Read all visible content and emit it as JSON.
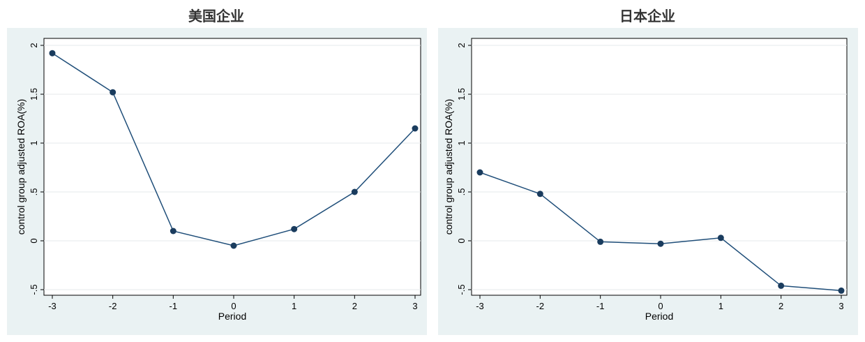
{
  "chart_data": [
    {
      "type": "line",
      "title": "美国企业",
      "xlabel": "Period",
      "ylabel": "control group adjusted ROA(%)",
      "x": [
        -3,
        -2,
        -1,
        0,
        1,
        2,
        3
      ],
      "series": [
        {
          "values": [
            1.92,
            1.52,
            0.1,
            -0.05,
            0.12,
            0.5,
            1.15
          ]
        }
      ],
      "xticks": [
        "-3",
        "-2",
        "-1",
        "0",
        "1",
        "2",
        "3"
      ],
      "yticks": [
        -0.5,
        0,
        0.5,
        1,
        1.5,
        2
      ],
      "ytick_labels": [
        "-.5",
        "0",
        ".5",
        "1",
        "1.5",
        "2"
      ],
      "xlim": [
        -3,
        3
      ],
      "ylim": [
        -0.5,
        2
      ],
      "grid": true,
      "line_color": "#1f4e79",
      "marker_color": "#1a3c5e",
      "background": "#eaf2f3"
    },
    {
      "type": "line",
      "title": "日本企业",
      "xlabel": "Period",
      "ylabel": "control group adjusted ROA(%)",
      "x": [
        -3,
        -2,
        -1,
        0,
        1,
        2,
        3
      ],
      "series": [
        {
          "values": [
            0.7,
            0.48,
            -0.01,
            -0.03,
            0.03,
            -0.46,
            -0.51
          ]
        }
      ],
      "xticks": [
        "-3",
        "-2",
        "-1",
        "0",
        "1",
        "2",
        "3"
      ],
      "yticks": [
        -0.5,
        0,
        0.5,
        1,
        1.5,
        2
      ],
      "ytick_labels": [
        "-.5",
        "0",
        ".5",
        "1",
        "1.5",
        "2"
      ],
      "xlim": [
        -3,
        3
      ],
      "ylim": [
        -0.5,
        2
      ],
      "grid": true,
      "line_color": "#1f4e79",
      "marker_color": "#1a3c5e",
      "background": "#eaf2f3"
    }
  ]
}
